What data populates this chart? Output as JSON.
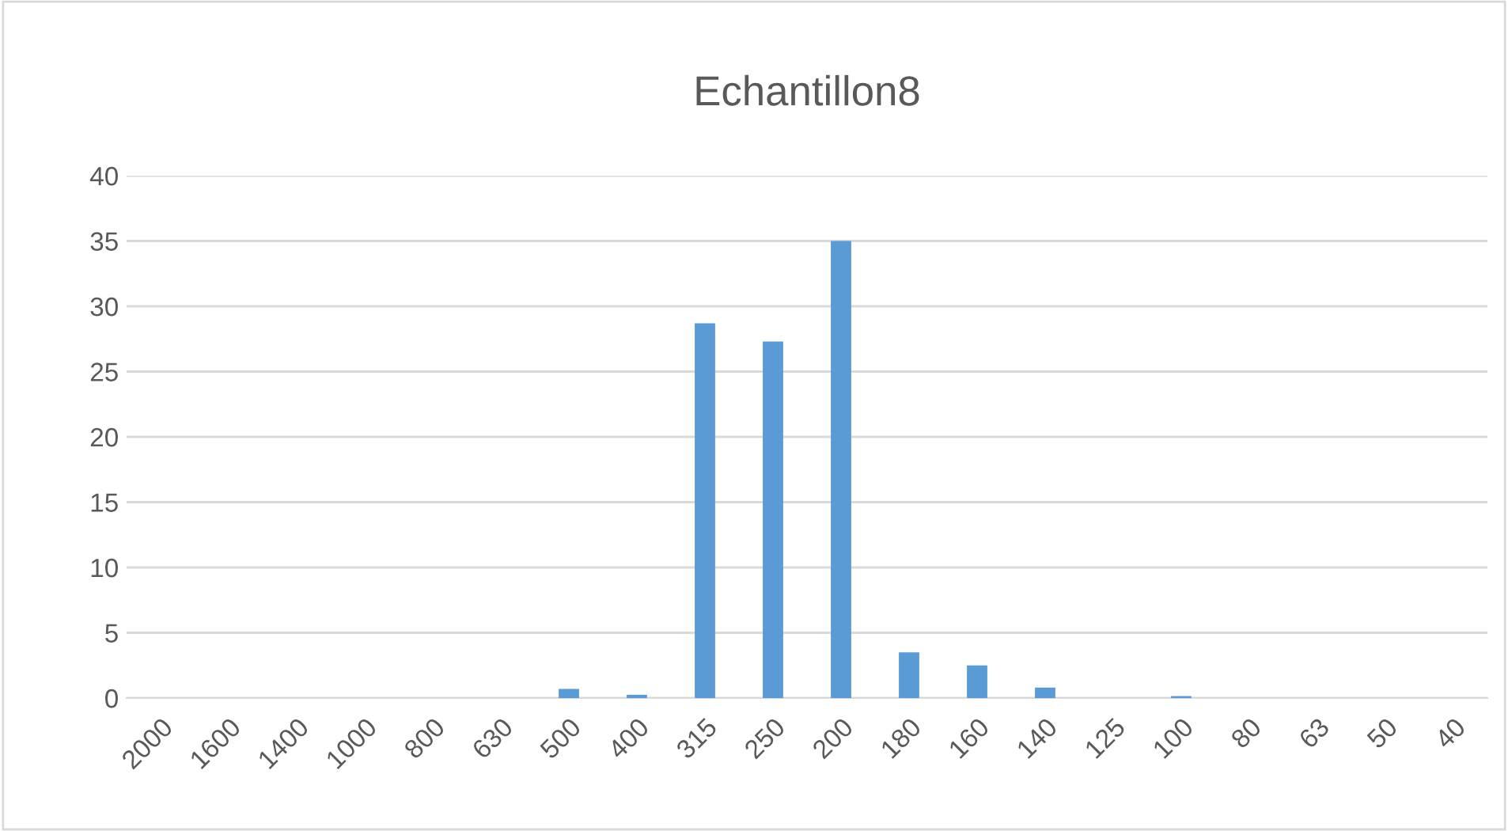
{
  "chart_data": {
    "type": "bar",
    "title": "Echantillon8",
    "categories": [
      "2000",
      "1600",
      "1400",
      "1000",
      "800",
      "630",
      "500",
      "400",
      "315",
      "250",
      "200",
      "180",
      "160",
      "140",
      "125",
      "100",
      "80",
      "63",
      "50",
      "40"
    ],
    "values": [
      0,
      0,
      0,
      0,
      0,
      0,
      0.7,
      0.25,
      28.7,
      27.3,
      35,
      3.5,
      2.5,
      0.8,
      0,
      0.15,
      0,
      0,
      0,
      0
    ],
    "color": "#5b9bd5",
    "ylim": [
      0,
      40
    ],
    "yticks": [
      0,
      5,
      10,
      15,
      20,
      25,
      30,
      35,
      40
    ],
    "grid": "y"
  }
}
